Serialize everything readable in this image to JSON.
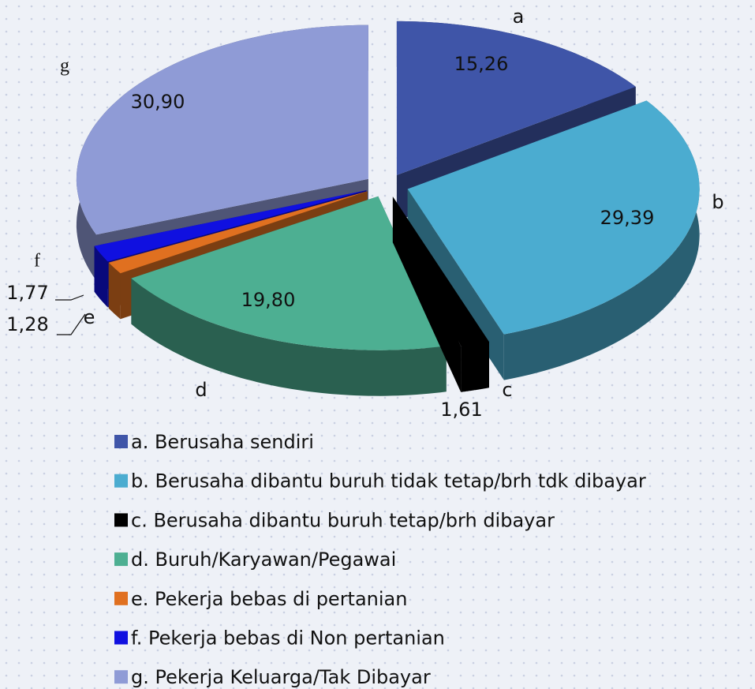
{
  "chart_data": {
    "type": "pie",
    "categories": [
      "a. Berusaha sendiri",
      "b. Berusaha dibantu buruh tidak tetap/brh tdk dibayar",
      "c. Berusaha dibantu buruh tetap/brh dibayar",
      "d. Buruh/Karyawan/Pegawai",
      "e. Pekerja bebas di pertanian",
      "f. Pekerja bebas di Non pertanian",
      "g. Pekerja Keluarga/Tak Dibayar"
    ],
    "slice_letters": [
      "a",
      "b",
      "c",
      "d",
      "e",
      "f",
      "g"
    ],
    "values": [
      15.26,
      29.39,
      1.61,
      19.8,
      1.28,
      1.77,
      30.9
    ],
    "value_labels": [
      "15,26",
      "29,39",
      "1,61",
      "19,80",
      "1,28",
      "1,77",
      "30,90"
    ],
    "colors": [
      "#3f55a8",
      "#4bacd0",
      "#000000",
      "#4daf92",
      "#e07020",
      "#1010e0",
      "#8f9bd6"
    ],
    "legend": "bottom"
  }
}
